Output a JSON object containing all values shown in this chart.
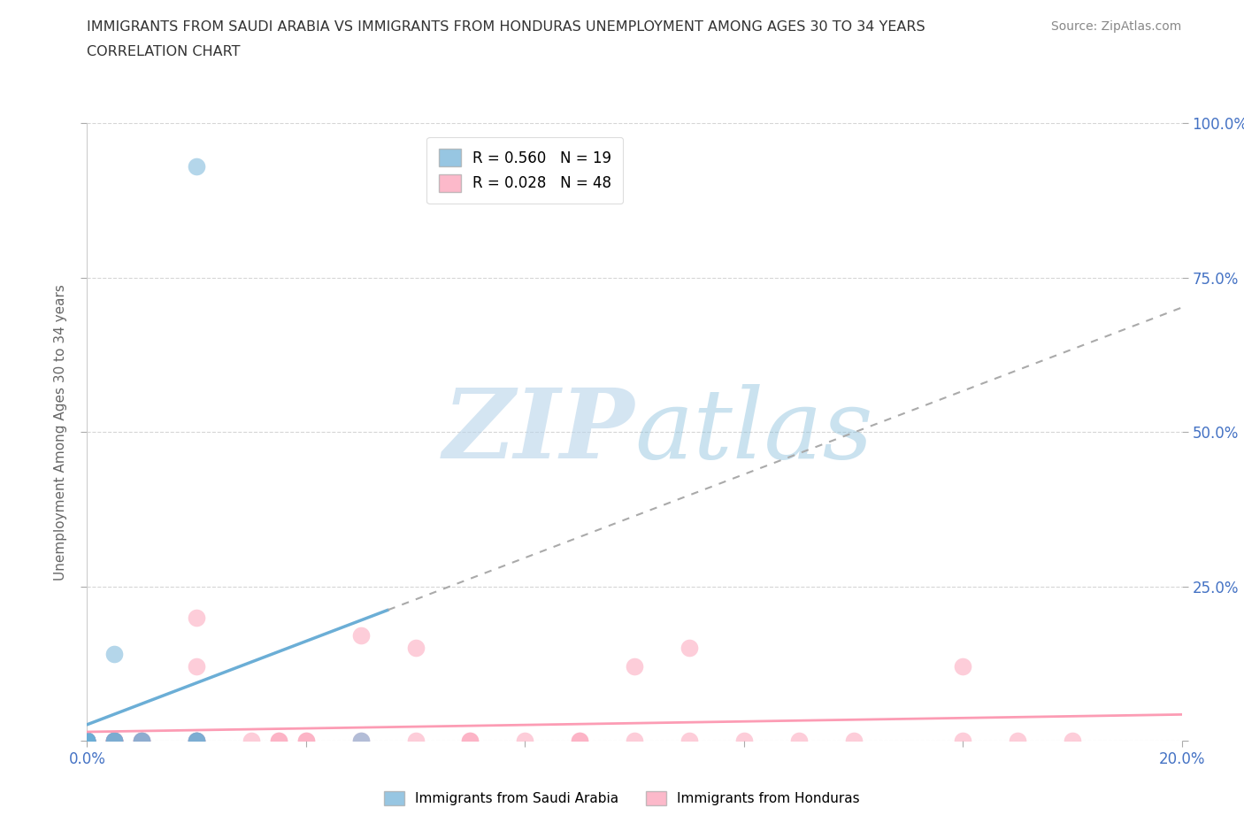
{
  "title_line1": "IMMIGRANTS FROM SAUDI ARABIA VS IMMIGRANTS FROM HONDURAS UNEMPLOYMENT AMONG AGES 30 TO 34 YEARS",
  "title_line2": "CORRELATION CHART",
  "source_text": "Source: ZipAtlas.com",
  "ylabel": "Unemployment Among Ages 30 to 34 years",
  "xlim": [
    0.0,
    0.2
  ],
  "ylim": [
    0.0,
    1.0
  ],
  "xticks": [
    0.0,
    0.04,
    0.08,
    0.12,
    0.16,
    0.2
  ],
  "yticks": [
    0.0,
    0.25,
    0.5,
    0.75,
    1.0
  ],
  "saudi_R": 0.56,
  "saudi_N": 19,
  "honduras_R": 0.028,
  "honduras_N": 48,
  "saudi_color": "#6baed6",
  "honduras_color": "#fc9cb4",
  "watermark_zip": "ZIP",
  "watermark_atlas": "atlas",
  "background_color": "#ffffff",
  "saudi_x": [
    0.0,
    0.0,
    0.0,
    0.0,
    0.0,
    0.0,
    0.0,
    0.0,
    0.005,
    0.005,
    0.005,
    0.005,
    0.01,
    0.01,
    0.02,
    0.02,
    0.02,
    0.05,
    0.02
  ],
  "saudi_y": [
    0.0,
    0.0,
    0.0,
    0.0,
    0.0,
    0.0,
    0.0,
    0.0,
    0.0,
    0.0,
    0.0,
    0.14,
    0.0,
    0.0,
    0.0,
    0.0,
    0.0,
    0.0,
    0.93
  ],
  "honduras_x": [
    0.0,
    0.0,
    0.0,
    0.0,
    0.0,
    0.0,
    0.0,
    0.0,
    0.0,
    0.0,
    0.005,
    0.005,
    0.005,
    0.005,
    0.005,
    0.01,
    0.01,
    0.01,
    0.02,
    0.02,
    0.02,
    0.02,
    0.02,
    0.03,
    0.035,
    0.035,
    0.04,
    0.04,
    0.05,
    0.05,
    0.06,
    0.06,
    0.07,
    0.07,
    0.08,
    0.09,
    0.09,
    0.1,
    0.1,
    0.11,
    0.11,
    0.12,
    0.13,
    0.14,
    0.16,
    0.16,
    0.17,
    0.18
  ],
  "honduras_y": [
    0.0,
    0.0,
    0.0,
    0.0,
    0.0,
    0.0,
    0.0,
    0.0,
    0.0,
    0.0,
    0.0,
    0.0,
    0.0,
    0.0,
    0.0,
    0.0,
    0.0,
    0.0,
    0.0,
    0.0,
    0.0,
    0.12,
    0.2,
    0.0,
    0.0,
    0.0,
    0.0,
    0.0,
    0.0,
    0.17,
    0.0,
    0.15,
    0.0,
    0.0,
    0.0,
    0.0,
    0.0,
    0.0,
    0.12,
    0.0,
    0.15,
    0.0,
    0.0,
    0.0,
    0.0,
    0.12,
    0.0,
    0.0
  ],
  "trend_blue_x1": 0.0,
  "trend_blue_x2": 0.055,
  "trend_dash_x1": 0.055,
  "trend_dash_x2": 0.2
}
